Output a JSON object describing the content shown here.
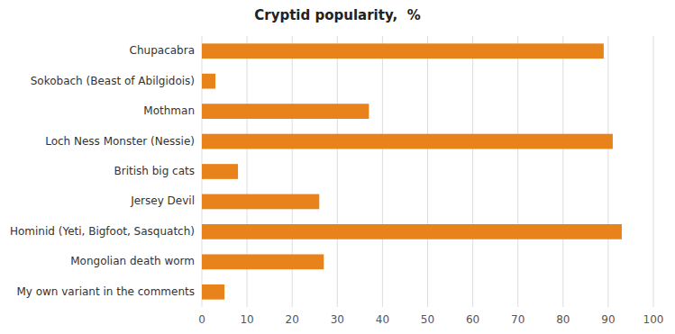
{
  "chart_data": {
    "type": "bar",
    "orientation": "horizontal",
    "title": "Cryptid popularity,  %",
    "categories": [
      "My own variant in the comments",
      "Mongolian death worm",
      "Hominid (Yeti, Bigfoot, Sasquatch)",
      "Jersey Devil",
      "British big cats",
      "Loch Ness Monster (Nessie)",
      "Mothman",
      "Sokobach (Beast of Abilgidois)",
      "Chupacabra"
    ],
    "values": [
      5,
      27,
      93,
      26,
      8,
      91,
      37,
      3,
      89
    ],
    "color": "#E8821A",
    "xlim": [
      0,
      100
    ],
    "xticks": [
      0,
      10,
      20,
      30,
      40,
      50,
      60,
      70,
      80,
      90,
      100
    ],
    "grid": true
  }
}
